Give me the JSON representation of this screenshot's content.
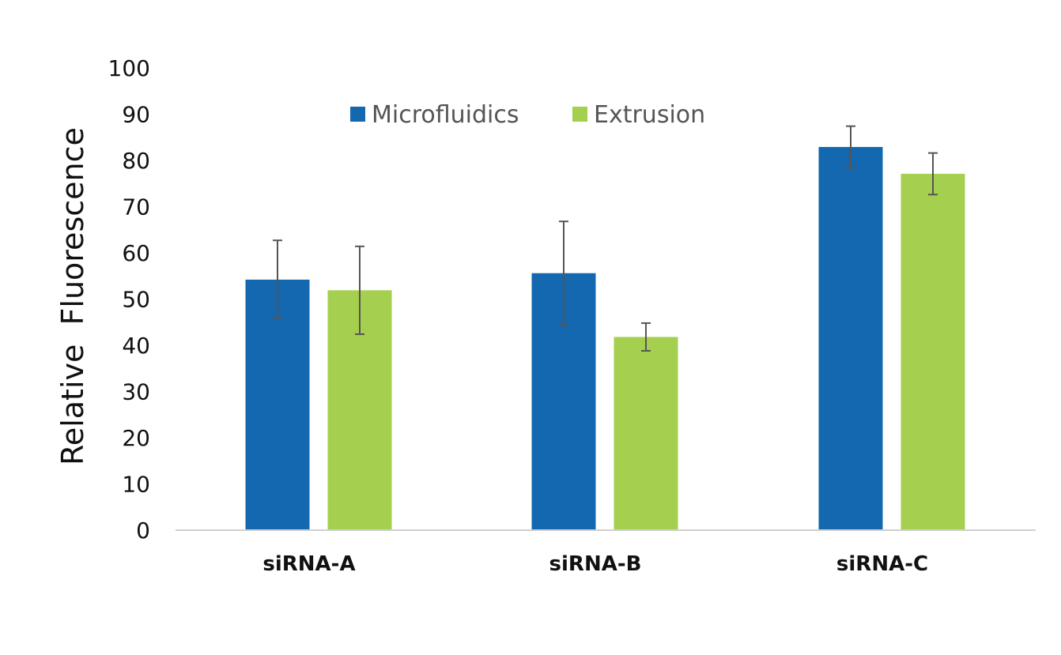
{
  "chart_data": {
    "type": "bar",
    "title": "",
    "xlabel": "",
    "ylabel": "Relative  Fluorescence",
    "categories": [
      "siRNA-A",
      "siRNA-B",
      "siRNA-C"
    ],
    "series": [
      {
        "name": "Microfluidics",
        "color": "#1368b0",
        "values": [
          54.2,
          55.6,
          82.9
        ],
        "errors": [
          8.5,
          11.2,
          4.5
        ]
      },
      {
        "name": "Extrusion",
        "color": "#a5cf4f",
        "values": [
          51.9,
          41.8,
          77.1
        ],
        "errors": [
          9.5,
          3.0,
          4.5
        ]
      }
    ],
    "ylim": [
      0,
      100
    ],
    "yticks": [
      0,
      10,
      20,
      30,
      40,
      50,
      60,
      70,
      80,
      90,
      100
    ],
    "grid": false,
    "legend_position": "top-center",
    "error_bar_color": "#555555",
    "axis_color": "#d0d0d0"
  }
}
